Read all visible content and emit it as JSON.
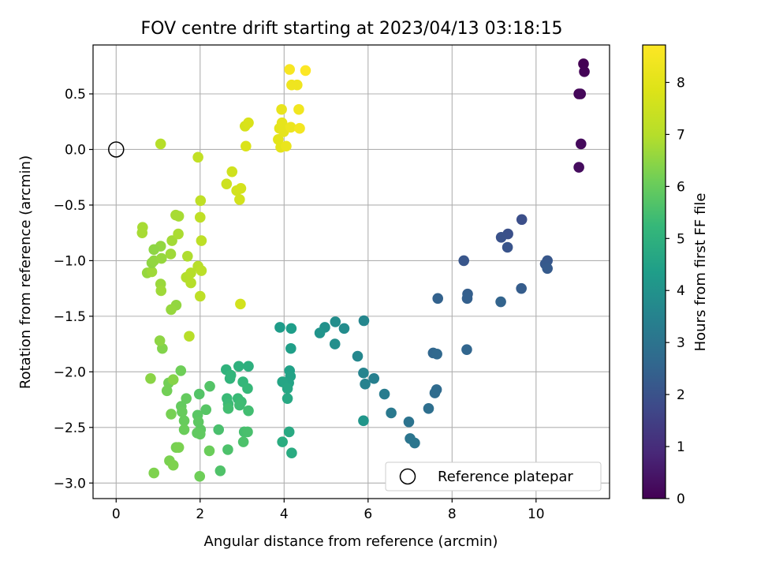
{
  "chart_data": {
    "type": "scatter",
    "title": "FOV centre drift starting at 2023/04/13 03:18:15",
    "xlabel": "Angular distance from reference (arcmin)",
    "ylabel": "Rotation from reference (arcmin)",
    "xlim": [
      -0.55,
      11.75
    ],
    "ylim": [
      -3.14,
      0.94
    ],
    "xticks": [
      0,
      2,
      4,
      6,
      8,
      10
    ],
    "yticks": [
      -3.0,
      -2.5,
      -2.0,
      -1.5,
      -1.0,
      -0.5,
      0.0,
      0.5
    ],
    "xtick_labels": [
      "0",
      "2",
      "4",
      "6",
      "8",
      "10"
    ],
    "ytick_labels": [
      "−3.0",
      "−2.5",
      "−2.0",
      "−1.5",
      "−1.0",
      "−0.5",
      "0.0",
      "0.5"
    ],
    "grid": true,
    "legend": {
      "label": "Reference platepar",
      "position": "lower-right"
    },
    "reference_point": {
      "x": 0,
      "y": 0
    },
    "colorbar": {
      "label": "Hours from first FF file",
      "range": [
        0,
        8.72
      ],
      "ticks": [
        0,
        1,
        2,
        3,
        4,
        5,
        6,
        7,
        8
      ],
      "tick_labels": [
        "0",
        "1",
        "2",
        "3",
        "4",
        "5",
        "6",
        "7",
        "8"
      ],
      "colormap": "viridis"
    },
    "series": [
      {
        "points": [
          [
            11.13,
            0.77,
            0.0
          ],
          [
            11.15,
            0.7,
            0.05
          ],
          [
            11.02,
            0.5,
            0.1
          ],
          [
            11.06,
            0.5,
            0.15
          ],
          [
            11.07,
            0.05,
            0.2
          ],
          [
            11.02,
            -0.16,
            0.25
          ],
          [
            9.66,
            -0.63,
            1.9
          ],
          [
            9.33,
            -0.76,
            1.95
          ],
          [
            9.17,
            -0.79,
            2.0
          ],
          [
            9.32,
            -0.88,
            2.05
          ],
          [
            8.28,
            -1.0,
            2.1
          ],
          [
            10.27,
            -1.0,
            2.15
          ],
          [
            10.22,
            -1.03,
            2.2
          ],
          [
            10.27,
            -1.07,
            2.25
          ],
          [
            9.65,
            -1.25,
            2.3
          ],
          [
            8.37,
            -1.3,
            2.35
          ],
          [
            8.36,
            -1.34,
            2.4
          ],
          [
            7.66,
            -1.34,
            2.45
          ],
          [
            9.16,
            -1.37,
            2.5
          ],
          [
            8.35,
            -1.8,
            2.55
          ],
          [
            7.55,
            -1.83,
            2.6
          ],
          [
            7.64,
            -1.84,
            2.65
          ],
          [
            7.63,
            -2.16,
            2.7
          ],
          [
            7.59,
            -2.19,
            2.75
          ],
          [
            7.44,
            -2.33,
            2.85
          ],
          [
            6.97,
            -2.45,
            3.0
          ],
          [
            7.0,
            -2.6,
            3.05
          ],
          [
            7.11,
            -2.64,
            3.1
          ],
          [
            6.55,
            -2.37,
            3.2
          ],
          [
            6.39,
            -2.2,
            3.3
          ],
          [
            6.14,
            -2.06,
            3.4
          ],
          [
            5.93,
            -2.11,
            3.5
          ],
          [
            5.89,
            -2.01,
            3.55
          ],
          [
            5.9,
            -1.54,
            3.6
          ],
          [
            5.75,
            -1.86,
            3.65
          ],
          [
            5.43,
            -1.61,
            3.8
          ],
          [
            5.22,
            -1.55,
            3.85
          ],
          [
            5.21,
            -1.75,
            3.9
          ],
          [
            4.97,
            -1.6,
            3.95
          ],
          [
            4.85,
            -1.65,
            4.05
          ],
          [
            5.89,
            -2.44,
            4.1
          ],
          [
            3.9,
            -1.6,
            4.3
          ],
          [
            4.17,
            -1.61,
            4.35
          ],
          [
            4.16,
            -1.79,
            4.4
          ],
          [
            4.13,
            -1.99,
            4.45
          ],
          [
            4.15,
            -2.04,
            4.5
          ],
          [
            4.11,
            -2.1,
            4.55
          ],
          [
            3.96,
            -2.09,
            4.6
          ],
          [
            4.08,
            -2.15,
            4.65
          ],
          [
            4.08,
            -2.24,
            4.7
          ],
          [
            4.12,
            -2.54,
            4.75
          ],
          [
            4.18,
            -2.73,
            4.8
          ],
          [
            3.96,
            -2.63,
            4.85
          ],
          [
            3.15,
            -1.95,
            4.95
          ],
          [
            2.92,
            -1.95,
            5.0
          ],
          [
            2.62,
            -1.98,
            5.05
          ],
          [
            2.71,
            -2.06,
            5.1
          ],
          [
            2.73,
            -2.03,
            5.15
          ],
          [
            3.02,
            -2.09,
            5.2
          ],
          [
            3.13,
            -2.15,
            5.25
          ],
          [
            2.64,
            -2.24,
            5.3
          ],
          [
            2.9,
            -2.24,
            5.3
          ],
          [
            2.98,
            -2.27,
            5.35
          ],
          [
            2.67,
            -2.29,
            5.35
          ],
          [
            2.94,
            -2.3,
            5.4
          ],
          [
            2.67,
            -2.33,
            5.45
          ],
          [
            3.15,
            -2.35,
            5.45
          ],
          [
            3.05,
            -2.54,
            5.5
          ],
          [
            3.13,
            -2.54,
            5.55
          ],
          [
            2.44,
            -2.52,
            5.55
          ],
          [
            3.03,
            -2.63,
            5.6
          ],
          [
            2.66,
            -2.7,
            5.6
          ],
          [
            2.48,
            -2.89,
            5.65
          ],
          [
            2.23,
            -2.13,
            5.7
          ],
          [
            1.98,
            -2.2,
            5.7
          ],
          [
            2.14,
            -2.34,
            5.75
          ],
          [
            1.94,
            -2.39,
            5.8
          ],
          [
            1.96,
            -2.45,
            5.85
          ],
          [
            2.01,
            -2.52,
            5.85
          ],
          [
            1.93,
            -2.55,
            5.9
          ],
          [
            2.0,
            -2.56,
            5.9
          ],
          [
            1.67,
            -2.24,
            5.95
          ],
          [
            1.55,
            -2.31,
            5.95
          ],
          [
            1.57,
            -2.36,
            6.0
          ],
          [
            1.62,
            -2.44,
            6.0
          ],
          [
            1.62,
            -2.52,
            6.05
          ],
          [
            2.22,
            -2.71,
            6.05
          ],
          [
            1.99,
            -2.94,
            6.1
          ],
          [
            1.54,
            -1.99,
            6.1
          ],
          [
            1.25,
            -2.1,
            6.15
          ],
          [
            1.21,
            -2.17,
            6.15
          ],
          [
            1.31,
            -2.38,
            6.2
          ],
          [
            1.43,
            -2.68,
            6.2
          ],
          [
            1.49,
            -2.68,
            6.25
          ],
          [
            1.27,
            -2.8,
            6.25
          ],
          [
            1.36,
            -2.84,
            6.3
          ],
          [
            0.9,
            -2.91,
            6.3
          ],
          [
            1.1,
            -1.79,
            6.35
          ],
          [
            1.36,
            -2.07,
            6.4
          ],
          [
            0.82,
            -2.06,
            6.45
          ],
          [
            1.04,
            -1.72,
            6.5
          ],
          [
            1.43,
            -1.4,
            6.55
          ],
          [
            1.31,
            -1.44,
            6.6
          ],
          [
            1.06,
            -1.21,
            6.65
          ],
          [
            1.07,
            -1.27,
            6.7
          ],
          [
            0.74,
            -1.11,
            6.6
          ],
          [
            0.85,
            -1.1,
            6.7
          ],
          [
            0.85,
            -1.02,
            6.5
          ],
          [
            0.9,
            -1.0,
            6.55
          ],
          [
            1.08,
            -0.98,
            6.6
          ],
          [
            1.06,
            -0.87,
            6.55
          ],
          [
            0.9,
            -0.9,
            6.5
          ],
          [
            1.3,
            -0.94,
            6.7
          ],
          [
            1.33,
            -0.82,
            6.75
          ],
          [
            1.42,
            -0.59,
            6.8
          ],
          [
            1.49,
            -0.6,
            6.8
          ],
          [
            1.48,
            -0.76,
            6.85
          ],
          [
            0.63,
            -0.7,
            6.8
          ],
          [
            0.62,
            -0.75,
            6.8
          ],
          [
            1.7,
            -0.96,
            6.9
          ],
          [
            1.67,
            -1.15,
            6.95
          ],
          [
            1.78,
            -1.11,
            7.0
          ],
          [
            1.78,
            -1.2,
            7.0
          ],
          [
            1.95,
            -1.05,
            7.05
          ],
          [
            2.03,
            -1.09,
            7.1
          ],
          [
            1.74,
            -1.68,
            7.05
          ],
          [
            2.0,
            -1.32,
            7.15
          ],
          [
            2.03,
            -0.82,
            7.15
          ],
          [
            2.0,
            -0.61,
            7.2
          ],
          [
            2.01,
            -0.46,
            7.2
          ],
          [
            1.95,
            -0.07,
            7.25
          ],
          [
            1.06,
            0.05,
            7.0
          ],
          [
            2.63,
            -0.31,
            7.5
          ],
          [
            2.76,
            -0.2,
            7.55
          ],
          [
            2.87,
            -0.37,
            7.6
          ],
          [
            2.94,
            -0.45,
            7.6
          ],
          [
            2.97,
            -0.35,
            7.65
          ],
          [
            2.96,
            -1.39,
            7.6
          ],
          [
            3.07,
            0.21,
            7.7
          ],
          [
            3.15,
            0.24,
            7.75
          ],
          [
            3.09,
            0.03,
            7.8
          ],
          [
            3.86,
            0.09,
            8.0
          ],
          [
            3.89,
            0.19,
            8.05
          ],
          [
            3.92,
            0.02,
            8.05
          ],
          [
            3.95,
            0.24,
            8.1
          ],
          [
            3.94,
            0.36,
            8.15
          ],
          [
            3.99,
            0.16,
            8.1
          ],
          [
            4.05,
            0.03,
            8.2
          ],
          [
            4.16,
            0.2,
            8.25
          ],
          [
            4.31,
            0.58,
            8.35
          ],
          [
            4.18,
            0.58,
            8.35
          ],
          [
            4.35,
            0.36,
            8.4
          ],
          [
            4.37,
            0.19,
            8.45
          ],
          [
            4.13,
            0.72,
            8.55
          ],
          [
            4.51,
            0.71,
            8.7
          ]
        ]
      }
    ]
  }
}
